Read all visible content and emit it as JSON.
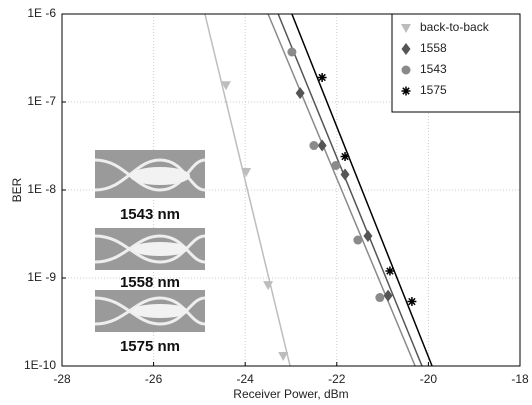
{
  "chart_data": {
    "type": "scatter",
    "x_label": "Receiver Power, dBm",
    "y_label": "BER",
    "xlim": [
      -28,
      -18
    ],
    "xticks": [
      -28,
      -26,
      -24,
      -22,
      -20,
      -18
    ],
    "ylim": [
      1e-10,
      1e-06
    ],
    "yscale": "log",
    "yticks": [
      {
        "value": 1e-10,
        "label": "1E-10"
      },
      {
        "value": 1e-09,
        "label": "1E -9"
      },
      {
        "value": 1e-08,
        "label": "1E -8"
      },
      {
        "value": 1e-07,
        "label": "1E -7"
      },
      {
        "value": 1e-06,
        "label": "1E -6"
      }
    ],
    "grid": true,
    "legend": "upper right",
    "series": [
      {
        "name": "back-to-back",
        "color": "#bdbdbd",
        "marker": "triangle-down",
        "x": [
          -24.42,
          -23.98,
          -23.5,
          -23.17
        ],
        "values": [
          1.55e-07,
          1.6e-08,
          8.3e-10,
          1.3e-10
        ],
        "fit": {
          "x": [
            -24.88,
            -23.02
          ],
          "values": [
            1e-06,
            1e-10
          ]
        }
      },
      {
        "name": "1558",
        "color": "#555555",
        "marker": "diamond",
        "x": [
          -22.8,
          -22.32,
          -21.82,
          -21.32,
          -20.88
        ],
        "values": [
          1.26e-07,
          3.2e-08,
          1.5e-08,
          3e-09,
          6.3e-10
        ],
        "fit": {
          "x": [
            -23.28,
            -20.14
          ],
          "values": [
            1e-06,
            1e-10
          ]
        }
      },
      {
        "name": "1543",
        "color": "#8a8a8a",
        "marker": "circle",
        "x": [
          -22.98,
          -22.5,
          -22.02,
          -21.54,
          -21.06
        ],
        "values": [
          3.7e-07,
          3.2e-08,
          1.9e-08,
          2.7e-09,
          6e-10
        ],
        "fit": {
          "x": [
            -23.5,
            -20.29
          ],
          "values": [
            1e-06,
            1e-10
          ]
        }
      },
      {
        "name": "1575",
        "color": "#000000",
        "marker": "star",
        "x": [
          -22.32,
          -21.82,
          -20.84,
          -20.36
        ],
        "values": [
          1.9e-07,
          2.4e-08,
          1.2e-09,
          5.4e-10
        ],
        "fit": {
          "x": [
            -22.98,
            -19.92
          ],
          "values": [
            1e-06,
            1e-10
          ]
        }
      }
    ],
    "annotations": [
      "1543 nm",
      "1558 nm",
      "1575 nm"
    ]
  }
}
